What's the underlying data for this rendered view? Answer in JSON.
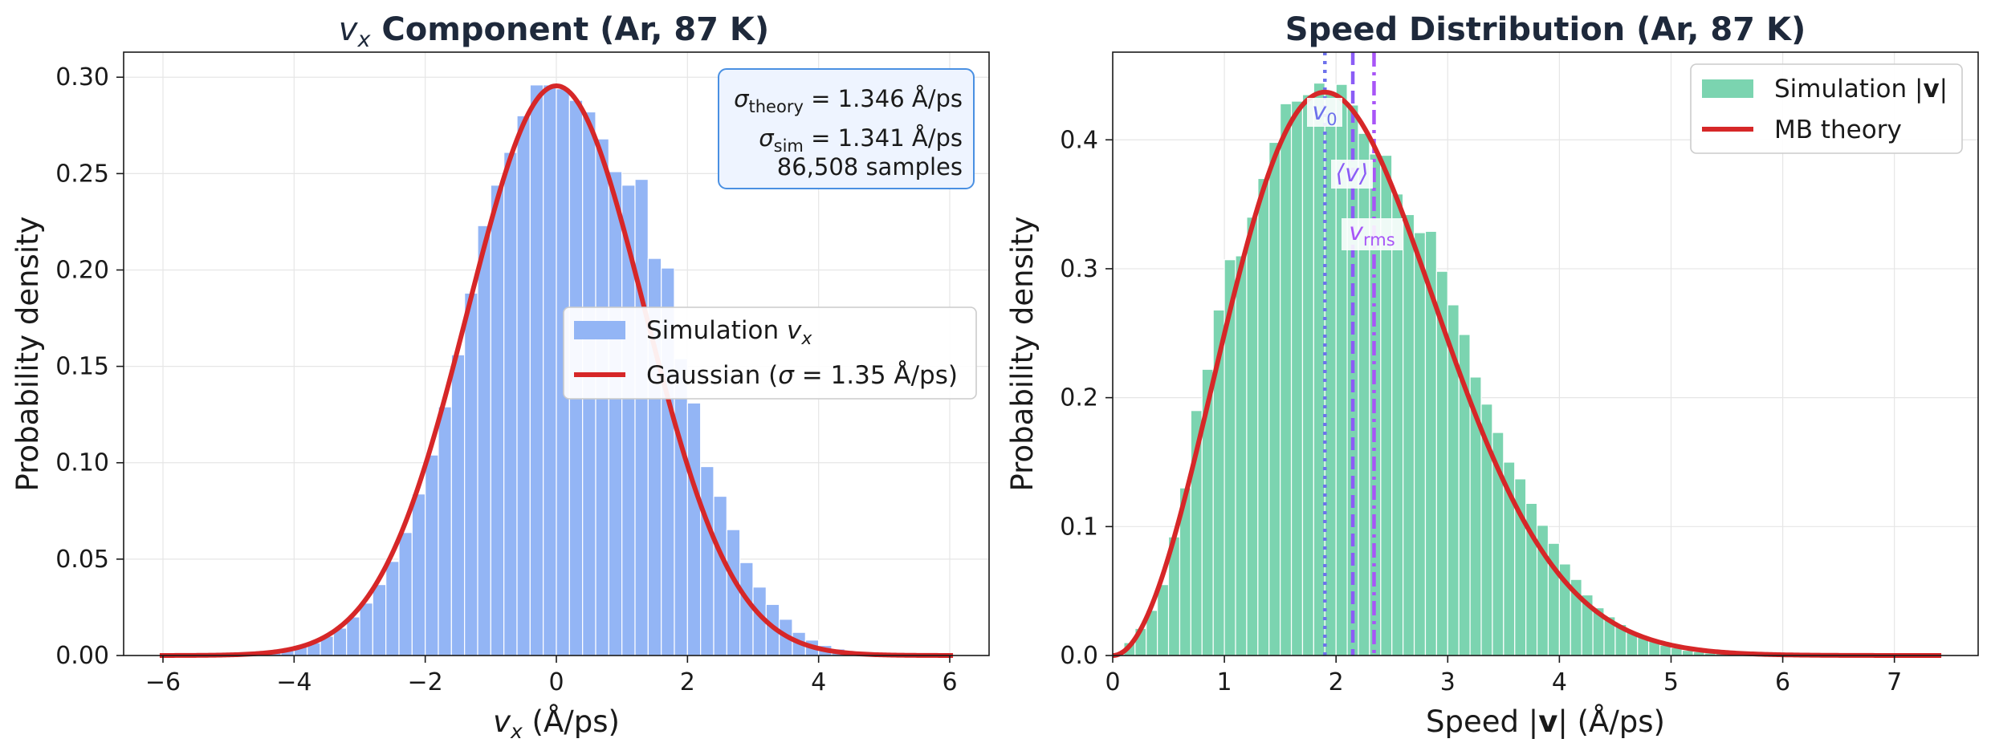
{
  "chart_data": [
    {
      "type": "bar",
      "title": "v_x Component (Ar, 87 K)",
      "title_parts": {
        "var": "v",
        "sub": "x",
        "rest": " Component (Ar, 87 K)"
      },
      "xlabel_parts": {
        "var": "v",
        "sub": "x",
        "rest": " (Å/ps)"
      },
      "ylabel": "Probability density",
      "xlim": [
        -6.6,
        6.6
      ],
      "ylim": [
        0,
        0.313
      ],
      "xticks": [
        -6,
        -4,
        -2,
        0,
        2,
        4,
        6
      ],
      "xtick_labels": [
        "−6",
        "−4",
        "−2",
        "0",
        "2",
        "4",
        "6"
      ],
      "yticks": [
        0.0,
        0.05,
        0.1,
        0.15,
        0.2,
        0.25,
        0.3
      ],
      "ytick_labels": [
        "0.00",
        "0.05",
        "0.10",
        "0.15",
        "0.20",
        "0.25",
        "0.30"
      ],
      "grid": true,
      "bin_width": 0.2,
      "histogram_centers": [
        -4.3,
        -4.1,
        -3.9,
        -3.7,
        -3.5,
        -3.3,
        -3.1,
        -2.9,
        -2.7,
        -2.5,
        -2.3,
        -2.1,
        -1.9,
        -1.7,
        -1.5,
        -1.3,
        -1.1,
        -0.9,
        -0.7,
        -0.5,
        -0.3,
        -0.1,
        0.1,
        0.3,
        0.5,
        0.7,
        0.9,
        1.1,
        1.3,
        1.5,
        1.7,
        1.9,
        2.1,
        2.3,
        2.5,
        2.7,
        2.9,
        3.1,
        3.3,
        3.5,
        3.7,
        3.9,
        4.1,
        4.3
      ],
      "histogram_values": [
        0.0018,
        0.0027,
        0.0045,
        0.0066,
        0.01,
        0.0142,
        0.02,
        0.0272,
        0.0368,
        0.0488,
        0.0638,
        0.0838,
        0.104,
        0.129,
        0.156,
        0.188,
        0.223,
        0.244,
        0.261,
        0.28,
        0.296,
        0.296,
        0.294,
        0.288,
        0.282,
        0.268,
        0.251,
        0.244,
        0.247,
        0.206,
        0.201,
        0.154,
        0.131,
        0.098,
        0.0826,
        0.0653,
        0.0482,
        0.0355,
        0.0265,
        0.0188,
        0.012,
        0.008,
        0.0052,
        0.0034
      ],
      "curve": {
        "kind": "gaussian",
        "sigma": 1.35,
        "xrange": [
          -6.05,
          6.05
        ]
      },
      "series": [
        {
          "name": "Simulation v_x",
          "color": "#93b5f5"
        },
        {
          "name": "Gaussian (σ = 1.35 Å/ps)",
          "color": "#d62728"
        }
      ],
      "legend": {
        "placement": "center-right",
        "sim_label": "Simulation ",
        "sim_var": "v",
        "sim_sub": "x",
        "gauss_label_pre": "Gaussian (",
        "gauss_sym": "σ",
        "gauss_label_post": " = 1.35 Å/ps)"
      },
      "annotation": {
        "placement": "top-right",
        "line1_sym": "σ",
        "line1_sub": "theory",
        "line1_val": " = 1.346 Å/ps",
        "line2_sym": "σ",
        "line2_sub": "sim",
        "line2_val": " = 1.341 Å/ps",
        "line3": "86,508 samples"
      }
    },
    {
      "type": "bar",
      "title": "Speed Distribution (Ar, 87 K)",
      "xlabel_parts": {
        "pre": "Speed |",
        "bold": "v",
        "post": "| (Å/ps)"
      },
      "ylabel": "Probability density",
      "xlim": [
        0,
        7.75
      ],
      "ylim": [
        0,
        0.468
      ],
      "xticks": [
        0,
        1,
        2,
        3,
        4,
        5,
        6,
        7
      ],
      "xtick_labels": [
        "0",
        "1",
        "2",
        "3",
        "4",
        "5",
        "6",
        "7"
      ],
      "yticks": [
        0.0,
        0.1,
        0.2,
        0.3,
        0.4
      ],
      "ytick_labels": [
        "0.0",
        "0.1",
        "0.2",
        "0.3",
        "0.4"
      ],
      "grid": true,
      "bin_width": 0.1,
      "histogram_centers": [
        0.15,
        0.25,
        0.35,
        0.45,
        0.55,
        0.65,
        0.75,
        0.85,
        0.95,
        1.05,
        1.15,
        1.25,
        1.35,
        1.45,
        1.55,
        1.65,
        1.75,
        1.85,
        1.95,
        2.05,
        2.15,
        2.25,
        2.35,
        2.45,
        2.55,
        2.65,
        2.75,
        2.85,
        2.95,
        3.05,
        3.15,
        3.25,
        3.35,
        3.45,
        3.55,
        3.65,
        3.75,
        3.85,
        3.95,
        4.05,
        4.15,
        4.25,
        4.35,
        4.45,
        4.55,
        4.65,
        4.75,
        4.85,
        4.95,
        5.05,
        5.15,
        5.25,
        5.35,
        5.45,
        5.55,
        5.65,
        5.75
      ],
      "histogram_values": [
        0.01,
        0.021,
        0.035,
        0.055,
        0.092,
        0.13,
        0.19,
        0.222,
        0.268,
        0.307,
        0.31,
        0.34,
        0.37,
        0.398,
        0.428,
        0.43,
        0.435,
        0.444,
        0.436,
        0.443,
        0.427,
        0.405,
        0.389,
        0.388,
        0.358,
        0.342,
        0.328,
        0.329,
        0.298,
        0.272,
        0.249,
        0.216,
        0.195,
        0.173,
        0.15,
        0.137,
        0.118,
        0.101,
        0.087,
        0.071,
        0.059,
        0.047,
        0.037,
        0.03,
        0.024,
        0.018,
        0.014,
        0.011,
        0.008,
        0.006,
        0.004,
        0.003,
        0.002,
        0.0016,
        0.0011,
        0.0008,
        0.0005
      ],
      "curve": {
        "kind": "maxwell_boltzmann",
        "v_mode": 1.9,
        "xrange": [
          0,
          7.42
        ]
      },
      "series": [
        {
          "name": "Simulation |v|",
          "color": "#7bd4b0"
        },
        {
          "name": "MB theory",
          "color": "#d62728"
        }
      ],
      "legend": {
        "placement": "top-right",
        "sim_label_pre": "Simulation |",
        "sim_label_bold": "v",
        "sim_label_post": "|",
        "mb_label": "MB theory"
      },
      "reference_lines": [
        {
          "name": "most-probable-speed",
          "value": 1.9,
          "style": "dotted",
          "color": "#6d71ec",
          "label_sym": "v",
          "label_sub": "0"
        },
        {
          "name": "mean-speed",
          "value": 2.15,
          "style": "dashed",
          "color": "#8b5cf6",
          "label_sym": "⟨v⟩",
          "label_sub": ""
        },
        {
          "name": "rms-speed",
          "value": 2.34,
          "style": "dashdot",
          "color": "#a855f7",
          "label_sym": "v",
          "label_sub": "rms"
        }
      ]
    }
  ],
  "colors": {
    "hist_left": "#93b5f5",
    "hist_right": "#7bd4b0",
    "curve": "#d62728",
    "title": "#1e293b",
    "annotation_fill": "#eef4ff",
    "annotation_border": "#4a90e2"
  }
}
